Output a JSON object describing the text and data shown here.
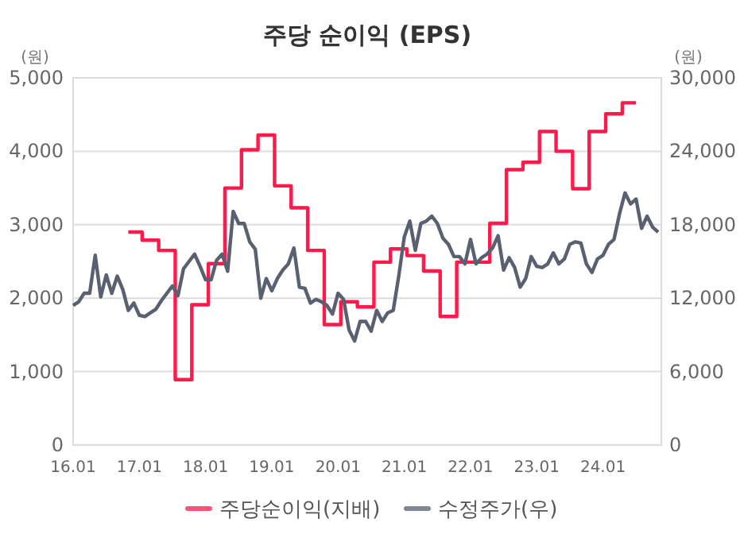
{
  "chart_data": {
    "type": "line",
    "title": "주당 순이익 (EPS)",
    "ylabel": "(원)",
    "y2label": "(원)",
    "categories": [
      "16.01",
      null,
      null,
      null,
      null,
      null,
      null,
      null,
      null,
      null,
      null,
      null,
      "17.01",
      null,
      null,
      null,
      null,
      null,
      null,
      null,
      null,
      null,
      null,
      null,
      "18.01",
      null,
      null,
      null,
      null,
      null,
      null,
      null,
      null,
      null,
      null,
      null,
      "19.01",
      null,
      null,
      null,
      null,
      null,
      null,
      null,
      null,
      null,
      null,
      null,
      "20.01",
      null,
      null,
      null,
      null,
      null,
      null,
      null,
      null,
      null,
      null,
      null,
      "21.01",
      null,
      null,
      null,
      null,
      null,
      null,
      null,
      null,
      null,
      null,
      null,
      "22.01",
      null,
      null,
      null,
      null,
      null,
      null,
      null,
      null,
      null,
      null,
      null,
      "23.01",
      null,
      null,
      null,
      null,
      null,
      null,
      null,
      null,
      null,
      null,
      null,
      "24.01",
      null,
      null,
      null,
      null,
      null,
      null,
      null,
      null,
      null,
      null
    ],
    "ylim": [
      0,
      5000
    ],
    "yticks": [
      0,
      {
        "value": 1000,
        "label": "1,000"
      },
      {
        "value": 2000,
        "label": "2,000"
      },
      {
        "value": 3000,
        "label": "3,000"
      },
      {
        "value": 4000,
        "label": "4,000"
      },
      {
        "value": 5000,
        "label": "5,000"
      }
    ],
    "y2lim": [
      0,
      30000
    ],
    "y2ticks": [
      0,
      {
        "value": 6000,
        "label": "6,000"
      },
      {
        "value": 12000,
        "label": "12,000"
      },
      {
        "value": 18000,
        "label": "18,000"
      },
      {
        "value": 24000,
        "label": "24,000"
      },
      {
        "value": 30000,
        "label": "30,000"
      }
    ],
    "grid": "y",
    "legend": "bottom",
    "marker": "none",
    "line_style": "solid",
    "series": [
      {
        "name": "주당순이익(지배)",
        "type": "step",
        "color": "#ff1a4b",
        "values": [
          null,
          null,
          null,
          null,
          null,
          null,
          null,
          null,
          null,
          null,
          2900,
          2900,
          2900,
          2790,
          2790,
          2790,
          2650,
          2650,
          2650,
          890,
          890,
          890,
          1910,
          1910,
          1910,
          2470,
          2470,
          2470,
          3500,
          3500,
          3500,
          4020,
          4020,
          4020,
          4220,
          4220,
          4220,
          3530,
          3530,
          3530,
          3230,
          3230,
          3230,
          2650,
          2650,
          2650,
          1640,
          1640,
          1640,
          1950,
          1950,
          1950,
          1880,
          1880,
          1880,
          2490,
          2490,
          2490,
          2670,
          2670,
          2670,
          2580,
          2580,
          2580,
          2370,
          2370,
          2370,
          1750,
          1750,
          1750,
          2490,
          2490,
          2490,
          2490,
          2490,
          2490,
          3020,
          3020,
          3020,
          3750,
          3750,
          3750,
          3850,
          3850,
          3850,
          4270,
          4270,
          4270,
          4000,
          4000,
          4000,
          3490,
          3490,
          3490,
          4270,
          4270,
          4270,
          4510,
          4510,
          4510,
          4660,
          4660,
          4660,
          null,
          null,
          null,
          null
        ]
      },
      {
        "name": "수정주가(우)",
        "type": "line",
        "axis": "y2",
        "color": "#596070",
        "values": [
          11400,
          11700,
          12400,
          12400,
          15500,
          12100,
          13900,
          12400,
          13800,
          12700,
          11000,
          11600,
          10600,
          10500,
          10800,
          11100,
          11800,
          12400,
          13000,
          12200,
          14400,
          15000,
          15600,
          14600,
          13500,
          13500,
          15100,
          15600,
          14200,
          19100,
          18100,
          18100,
          16600,
          16000,
          12000,
          13600,
          12600,
          13600,
          14300,
          14800,
          16100,
          12900,
          12800,
          11600,
          11900,
          11700,
          11400,
          10700,
          12400,
          11900,
          9400,
          8500,
          10100,
          10100,
          9300,
          11000,
          10100,
          10800,
          11000,
          13800,
          17000,
          18300,
          15900,
          18100,
          18300,
          18700,
          18100,
          16900,
          16400,
          15400,
          15400,
          14800,
          16800,
          14800,
          15300,
          15600,
          16100,
          17100,
          14300,
          15300,
          14500,
          12900,
          13600,
          15400,
          14600,
          14500,
          14800,
          15700,
          14800,
          15200,
          16400,
          16600,
          16500,
          14800,
          14100,
          15200,
          15500,
          16400,
          16800,
          18900,
          20600,
          19700,
          20100,
          17700,
          18700,
          17800,
          17400
        ]
      }
    ]
  }
}
